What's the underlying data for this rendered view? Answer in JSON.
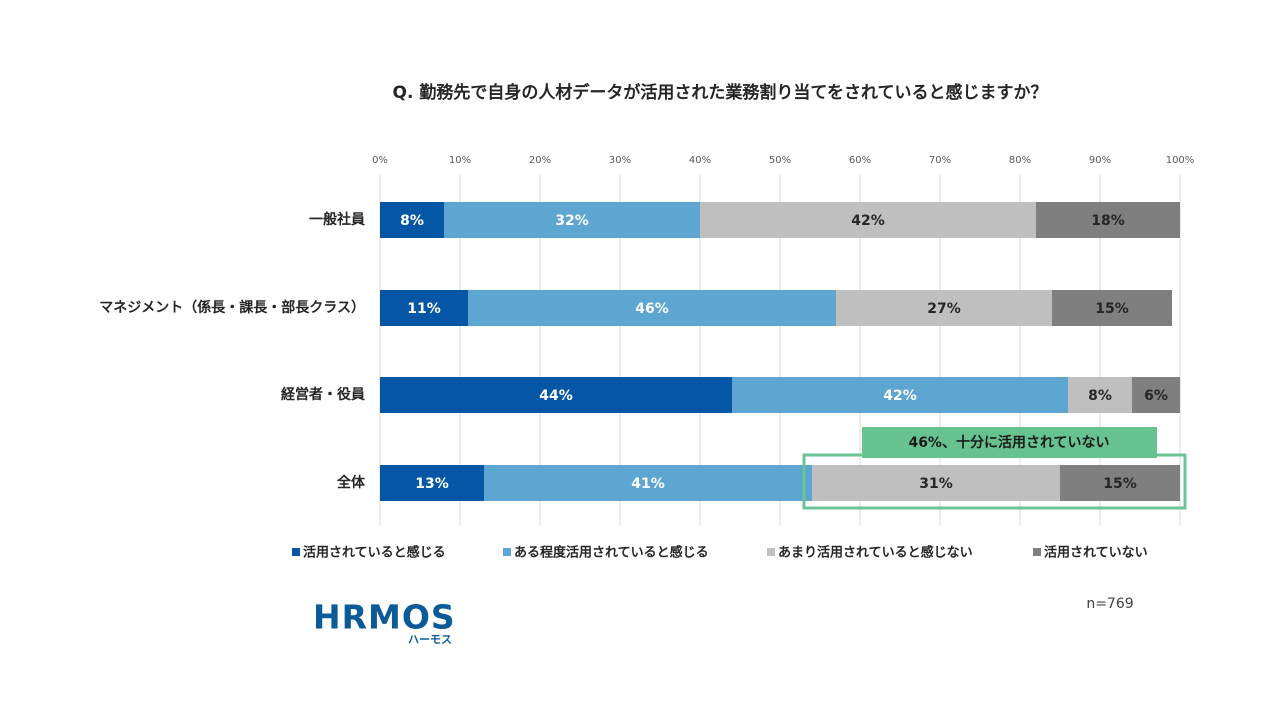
{
  "chart_data": {
    "type": "stacked-barh",
    "title": "Q. 勤務先で自身の人材データが活用された業務割り当てをされていると感じますか？",
    "categories": [
      "一般社員",
      "マネジメント（係長・課長・部長クラス）",
      "経営者・役員",
      "全体"
    ],
    "series": [
      {
        "name": "活用されていると感じる",
        "color": "#0556a5",
        "label_color": "#ffffff",
        "values": [
          8,
          11,
          44,
          13
        ],
        "value_labels": [
          "8%",
          "11%",
          "44%",
          "13%"
        ]
      },
      {
        "name": "ある程度活用されていると感じる",
        "color": "#5ea6d2",
        "label_color": "#ffffff",
        "values": [
          32,
          46,
          42,
          41
        ],
        "value_labels": [
          "32%",
          "46%",
          "42%",
          "41%"
        ]
      },
      {
        "name": "あまり活用されていると感じない",
        "color": "#bfbfbf",
        "label_color": "#262626",
        "values": [
          42,
          27,
          8,
          31
        ],
        "value_labels": [
          "42%",
          "27%",
          "8%",
          "31%"
        ]
      },
      {
        "name": "活用されていない",
        "color": "#7f7f7f",
        "label_color": "#262626",
        "values": [
          18,
          15,
          6,
          15
        ],
        "value_labels": [
          "18%",
          "15%",
          "6%",
          "15%"
        ]
      }
    ],
    "xlim": [
      0,
      100
    ],
    "xticks": [
      {
        "value": 0,
        "label": "0%"
      },
      {
        "value": 10,
        "label": "10%"
      },
      {
        "value": 20,
        "label": "20%"
      },
      {
        "value": 30,
        "label": "30%"
      },
      {
        "value": 40,
        "label": "40%"
      },
      {
        "value": 50,
        "label": "50%"
      },
      {
        "value": 60,
        "label": "60%"
      },
      {
        "value": 70,
        "label": "70%"
      },
      {
        "value": 80,
        "label": "80%"
      },
      {
        "value": 90,
        "label": "90%"
      },
      {
        "value": 100,
        "label": "100%"
      }
    ],
    "grid": true,
    "annotation": "46%、十分に活用されていない",
    "note": "n=769",
    "logo": {
      "text": "HRMOS",
      "sub": "ハーモス"
    }
  }
}
